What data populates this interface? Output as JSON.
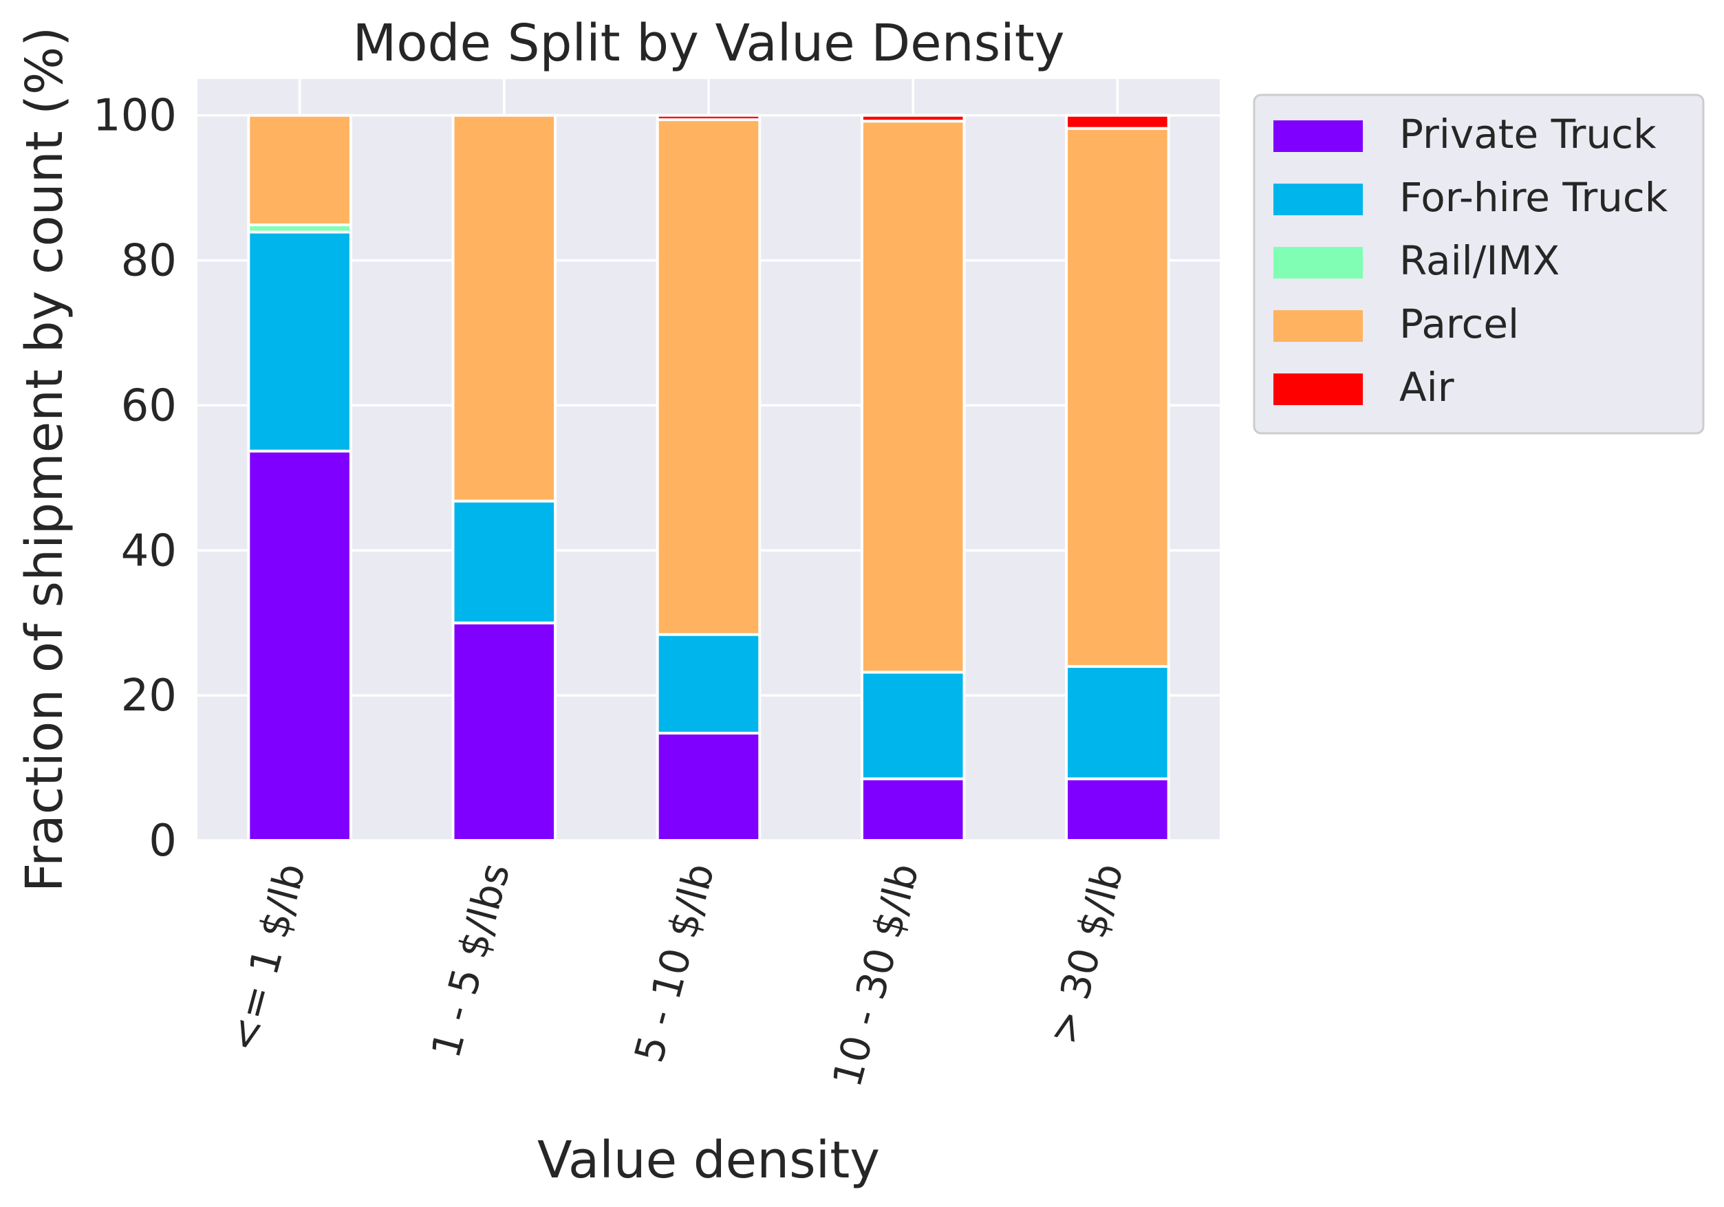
{
  "chart_data": {
    "type": "bar",
    "stacked": true,
    "title": "Mode Split by Value Density",
    "xlabel": "Value density",
    "ylabel": "Fraction of shipment by count (%)",
    "ylim": [
      0,
      105
    ],
    "yticks": [
      0,
      20,
      40,
      60,
      80,
      100
    ],
    "grid": true,
    "legend_position": "outside-upper-right",
    "categories": [
      "<= 1 $/lb",
      "1 - 5 $/lbs",
      "5 - 10 $/lb",
      "10 - 30 $/lb",
      "> 30 $/lb"
    ],
    "series": [
      {
        "name": "Private Truck",
        "color": "#8000ff",
        "values": [
          53.7,
          30.0,
          14.8,
          8.5,
          8.5
        ]
      },
      {
        "name": "For-hire Truck",
        "color": "#00b5eb",
        "values": [
          30.2,
          16.8,
          13.6,
          14.7,
          15.5
        ]
      },
      {
        "name": "Rail/IMX",
        "color": "#80ffb4",
        "values": [
          1.0,
          0.0,
          0.0,
          0.0,
          0.0
        ]
      },
      {
        "name": "Parcel",
        "color": "#ffb360",
        "values": [
          15.1,
          53.2,
          71.0,
          76.0,
          74.2
        ]
      },
      {
        "name": "Air",
        "color": "#ff0000",
        "values": [
          0.0,
          0.0,
          0.6,
          0.8,
          1.8
        ]
      }
    ],
    "colors": {
      "plot_background": "#eaeaf2",
      "grid": "#ffffff",
      "text": "#262626"
    }
  }
}
